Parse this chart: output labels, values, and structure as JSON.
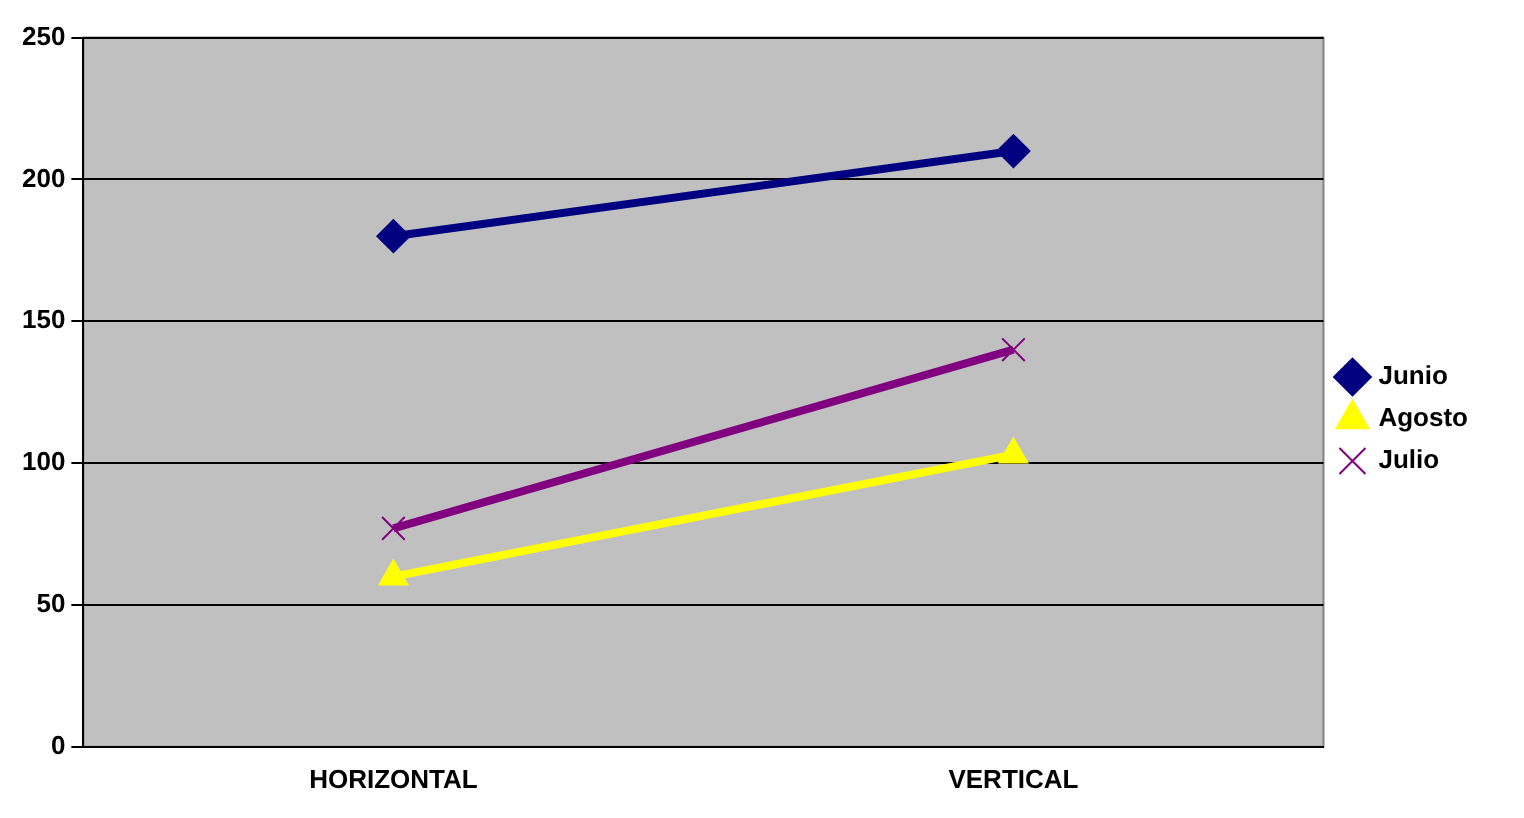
{
  "chart_data": {
    "type": "line",
    "categories": [
      "HORIZONTAL",
      "VERTICAL"
    ],
    "series": [
      {
        "name": "Junio",
        "color": "#000080",
        "values": [
          180,
          210
        ],
        "marker": "diamond"
      },
      {
        "name": "Agosto",
        "color": "#ffff00",
        "values": [
          60,
          103
        ],
        "marker": "triangle"
      },
      {
        "name": "Julio",
        "color": "#800080",
        "values": [
          77,
          140
        ],
        "marker": "cross"
      }
    ],
    "ylim": [
      0,
      250
    ],
    "yticks": [
      0,
      50,
      100,
      150,
      200,
      250
    ],
    "grid": "y",
    "legend": "right",
    "line_style": "solid"
  }
}
